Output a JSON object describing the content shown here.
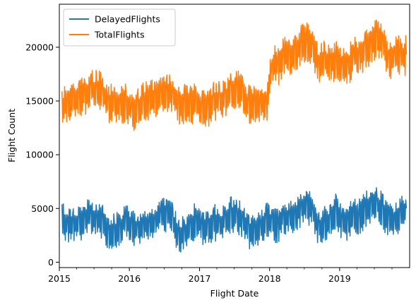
{
  "chart_data": {
    "type": "line",
    "xlabel": "Flight Date",
    "ylabel": "Flight Count",
    "xlim": [
      "2015-01-01",
      "2020-01-01"
    ],
    "ylim": [
      -500,
      24000
    ],
    "x_ticks": [
      "2015",
      "2016",
      "2017",
      "2018",
      "2019"
    ],
    "y_ticks": [
      0,
      5000,
      10000,
      15000,
      20000
    ],
    "y_tick_labels": [
      "0",
      "5000",
      "10000",
      "15000",
      "20000"
    ],
    "legend": {
      "position": "top-left",
      "entries": [
        "DelayedFlights",
        "TotalFlights"
      ]
    },
    "grid": false,
    "series": [
      {
        "name": "DelayedFlights",
        "color": "#1f77b4",
        "x": [
          "2015-01",
          "2015-02",
          "2015-03",
          "2015-04",
          "2015-05",
          "2015-06",
          "2015-07",
          "2015-08",
          "2015-09",
          "2015-10",
          "2015-11",
          "2015-12",
          "2016-01",
          "2016-02",
          "2016-03",
          "2016-04",
          "2016-05",
          "2016-06",
          "2016-07",
          "2016-08",
          "2016-09",
          "2016-10",
          "2016-11",
          "2016-12",
          "2017-01",
          "2017-02",
          "2017-03",
          "2017-04",
          "2017-05",
          "2017-06",
          "2017-07",
          "2017-08",
          "2017-09",
          "2017-10",
          "2017-11",
          "2017-12",
          "2018-01",
          "2018-02",
          "2018-03",
          "2018-04",
          "2018-05",
          "2018-06",
          "2018-07",
          "2018-08",
          "2018-09",
          "2018-10",
          "2018-11",
          "2018-12",
          "2019-01",
          "2019-02",
          "2019-03",
          "2019-04",
          "2019-05",
          "2019-06",
          "2019-07",
          "2019-08",
          "2019-09",
          "2019-10",
          "2019-11",
          "2019-12"
        ],
        "y": [
          4000,
          3300,
          3700,
          3500,
          4000,
          4300,
          4000,
          3800,
          2600,
          2900,
          3100,
          4200,
          3300,
          3000,
          3600,
          3300,
          3800,
          4400,
          4500,
          3800,
          2500,
          2600,
          3000,
          4100,
          3200,
          3000,
          3800,
          3300,
          4000,
          4500,
          4400,
          3800,
          2900,
          2800,
          3000,
          3900,
          3500,
          3500,
          4300,
          4000,
          4500,
          5000,
          5200,
          4600,
          3200,
          3600,
          3900,
          4800,
          3600,
          3700,
          4300,
          4300,
          4800,
          5400,
          5500,
          4800,
          3700,
          3900,
          4500,
          5000
        ]
      },
      {
        "name": "TotalFlights",
        "color": "#ff7f0e",
        "x": [
          "2015-01",
          "2015-02",
          "2015-03",
          "2015-04",
          "2015-05",
          "2015-06",
          "2015-07",
          "2015-08",
          "2015-09",
          "2015-10",
          "2015-11",
          "2015-12",
          "2016-01",
          "2016-02",
          "2016-03",
          "2016-04",
          "2016-05",
          "2016-06",
          "2016-07",
          "2016-08",
          "2016-09",
          "2016-10",
          "2016-11",
          "2016-12",
          "2017-01",
          "2017-02",
          "2017-03",
          "2017-04",
          "2017-05",
          "2017-06",
          "2017-07",
          "2017-08",
          "2017-09",
          "2017-10",
          "2017-11",
          "2017-12",
          "2018-01",
          "2018-02",
          "2018-03",
          "2018-04",
          "2018-05",
          "2018-06",
          "2018-07",
          "2018-08",
          "2018-09",
          "2018-10",
          "2018-11",
          "2018-12",
          "2019-01",
          "2019-02",
          "2019-03",
          "2019-04",
          "2019-05",
          "2019-06",
          "2019-07",
          "2019-08",
          "2019-09",
          "2019-10",
          "2019-11",
          "2019-12"
        ],
        "y": [
          14500,
          14600,
          15300,
          15400,
          15600,
          16000,
          16100,
          15700,
          14800,
          15000,
          14700,
          14800,
          14000,
          14300,
          15000,
          15100,
          15300,
          15700,
          15900,
          15500,
          14600,
          14800,
          14600,
          14900,
          14200,
          14200,
          15100,
          15000,
          15300,
          15800,
          16000,
          15600,
          14600,
          14900,
          14600,
          14700,
          18200,
          18300,
          19100,
          19200,
          19500,
          20300,
          20400,
          20000,
          18400,
          18800,
          18500,
          18700,
          18300,
          18300,
          19200,
          19300,
          19700,
          20400,
          20800,
          20300,
          18800,
          19300,
          19100,
          19300
        ]
      }
    ]
  }
}
